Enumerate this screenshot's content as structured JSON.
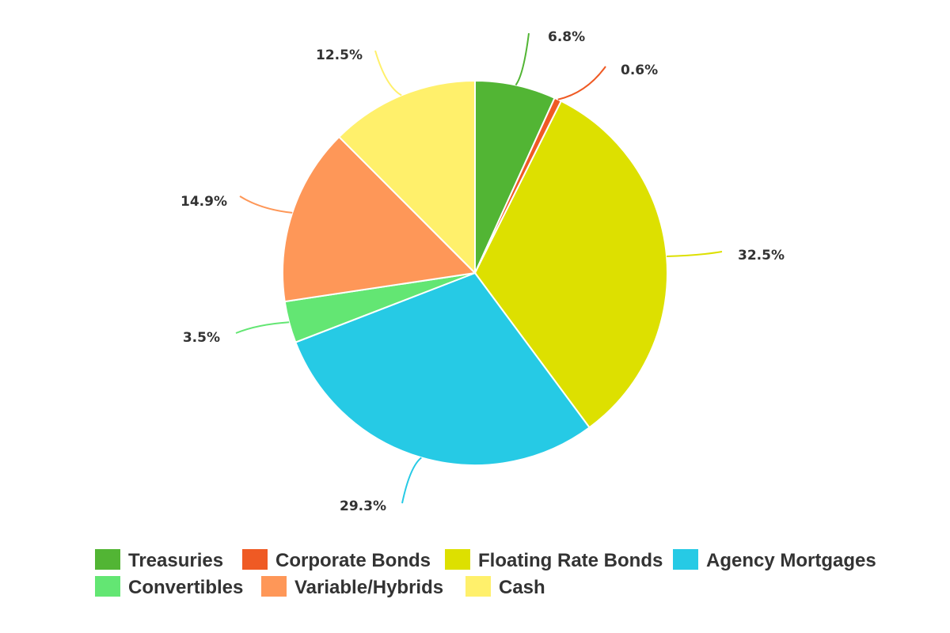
{
  "chart_data": {
    "type": "pie",
    "slices": [
      {
        "name": "Treasuries",
        "value": 6.8,
        "label": "6.8%",
        "color": "#52b534"
      },
      {
        "name": "Corporate Bonds",
        "value": 0.6,
        "label": "0.6%",
        "color": "#ef5a24"
      },
      {
        "name": "Floating Rate Bonds",
        "value": 32.5,
        "label": "32.5%",
        "color": "#dde000"
      },
      {
        "name": "Agency Mortgages",
        "value": 29.3,
        "label": "29.3%",
        "color": "#26cae5"
      },
      {
        "name": "Convertibles",
        "value": 3.5,
        "label": "3.5%",
        "color": "#63e673"
      },
      {
        "name": "Variable/Hybrids",
        "value": 14.9,
        "label": "14.9%",
        "color": "#fe9758"
      },
      {
        "name": "Cash",
        "value": 12.5,
        "label": "12.5%",
        "color": "#fff06b"
      }
    ],
    "legend_position": "bottom",
    "start_angle": "top, clockwise"
  }
}
